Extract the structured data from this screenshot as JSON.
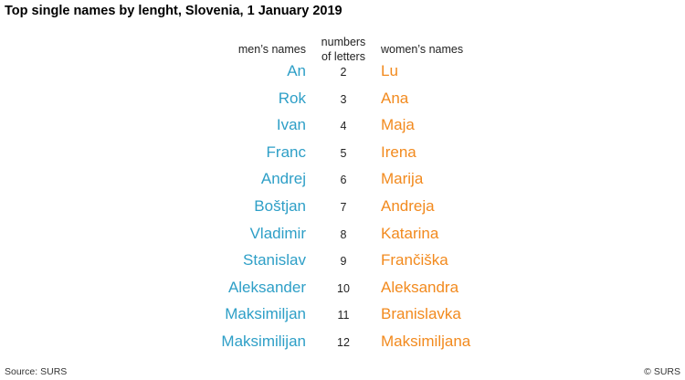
{
  "title": "Top single names by lenght, Slovenia, 1 January 2019",
  "headers": {
    "men": "men’s names",
    "numbers_line1": "numbers",
    "numbers_line2": "of letters",
    "women": "women’s names"
  },
  "colors": {
    "men": "#2e9fc7",
    "women": "#f28a1e"
  },
  "rows": [
    {
      "men": "An",
      "letters": "2",
      "women": "Lu"
    },
    {
      "men": "Rok",
      "letters": "3",
      "women": "Ana"
    },
    {
      "men": "Ivan",
      "letters": "4",
      "women": "Maja"
    },
    {
      "men": "Franc",
      "letters": "5",
      "women": "Irena"
    },
    {
      "men": "Andrej",
      "letters": "6",
      "women": "Marija"
    },
    {
      "men": "Boštjan",
      "letters": "7",
      "women": "Andreja"
    },
    {
      "men": "Vladimir",
      "letters": "8",
      "women": "Katarina"
    },
    {
      "men": "Stanislav",
      "letters": "9",
      "women": "Frančiška"
    },
    {
      "men": "Aleksander",
      "letters": "10",
      "women": "Aleksandra"
    },
    {
      "men": "Maksimiljan",
      "letters": "11",
      "women": "Branislavka"
    },
    {
      "men": "Maksimilijan",
      "letters": "12",
      "women": "Maksimiljana"
    }
  ],
  "footer": {
    "source": "Source: SURS",
    "copyright": "© SURS"
  }
}
